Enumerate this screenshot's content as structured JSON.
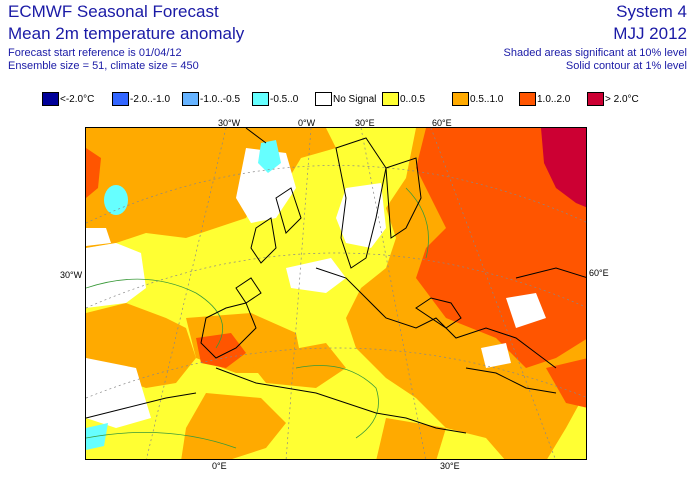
{
  "header": {
    "title_line1": "ECMWF Seasonal Forecast",
    "title_line2": "Mean 2m temperature anomaly",
    "start_ref": "Forecast start reference is 01/04/12",
    "ensemble": "Ensemble size = 51, climate size = 450",
    "system": "System 4",
    "period": "MJJ 2012",
    "shading_note": "Shaded areas significant at 10% level",
    "contour_note": "Solid contour at 1% level"
  },
  "legend": [
    {
      "label": "<-2.0°C",
      "color": "#000099"
    },
    {
      "label": "-2.0..-1.0",
      "color": "#3366ff"
    },
    {
      "label": "-1.0..-0.5",
      "color": "#66b3ff"
    },
    {
      "label": "-0.5..0",
      "color": "#66ffff"
    },
    {
      "label": "No Signal",
      "color": "#ffffff"
    },
    {
      "label": "0..0.5",
      "color": "#ffff33"
    },
    {
      "label": "0.5..1.0",
      "color": "#ffaa00"
    },
    {
      "label": "1.0..2.0",
      "color": "#ff5500"
    },
    {
      "label": "> 2.0°C",
      "color": "#cc0033"
    }
  ],
  "map": {
    "lon_labels_top": [
      "30°W",
      "0°W",
      "30°E",
      "60°E"
    ],
    "lon_labels_bottom": [
      "0°E",
      "30°E"
    ],
    "lat_label_left": "30°W",
    "lat_label_right": "60°E"
  }
}
